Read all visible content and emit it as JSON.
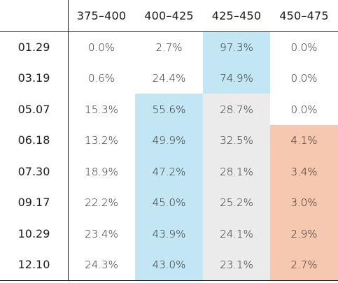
{
  "table": {
    "columns": [
      "375–400",
      "400–425",
      "425–450",
      "450–475"
    ],
    "rows": [
      {
        "label": "01.29",
        "values": [
          "0.0%",
          "2.7%",
          "97.3%",
          "0.0%"
        ],
        "fills": [
          "none",
          "none",
          "blue",
          "none"
        ]
      },
      {
        "label": "03.19",
        "values": [
          "0.6%",
          "24.4%",
          "74.9%",
          "0.0%"
        ],
        "fills": [
          "none",
          "none",
          "blue",
          "none"
        ]
      },
      {
        "label": "05.07",
        "values": [
          "15.3%",
          "55.6%",
          "28.7%",
          "0.0%"
        ],
        "fills": [
          "none",
          "blue",
          "gray",
          "none"
        ]
      },
      {
        "label": "06.18",
        "values": [
          "13.2%",
          "49.9%",
          "32.5%",
          "4.1%"
        ],
        "fills": [
          "none",
          "blue",
          "gray",
          "salmon"
        ]
      },
      {
        "label": "07.30",
        "values": [
          "18.9%",
          "47.2%",
          "28.1%",
          "3.4%"
        ],
        "fills": [
          "none",
          "blue",
          "gray",
          "salmon"
        ]
      },
      {
        "label": "09.17",
        "values": [
          "22.2%",
          "45.0%",
          "25.2%",
          "3.0%"
        ],
        "fills": [
          "none",
          "blue",
          "gray",
          "salmon"
        ]
      },
      {
        "label": "10.29",
        "values": [
          "23.4%",
          "43.9%",
          "24.1%",
          "2.9%"
        ],
        "fills": [
          "none",
          "blue",
          "gray",
          "salmon"
        ]
      },
      {
        "label": "12.10",
        "values": [
          "24.3%",
          "43.0%",
          "23.1%",
          "2.7%"
        ],
        "fills": [
          "none",
          "blue",
          "gray",
          "salmon"
        ]
      }
    ]
  },
  "colors": {
    "blue": "#c3e6f4",
    "gray": "#ebebeb",
    "salmon": "#f7c8b0",
    "none": "transparent",
    "rule": "#222222"
  }
}
